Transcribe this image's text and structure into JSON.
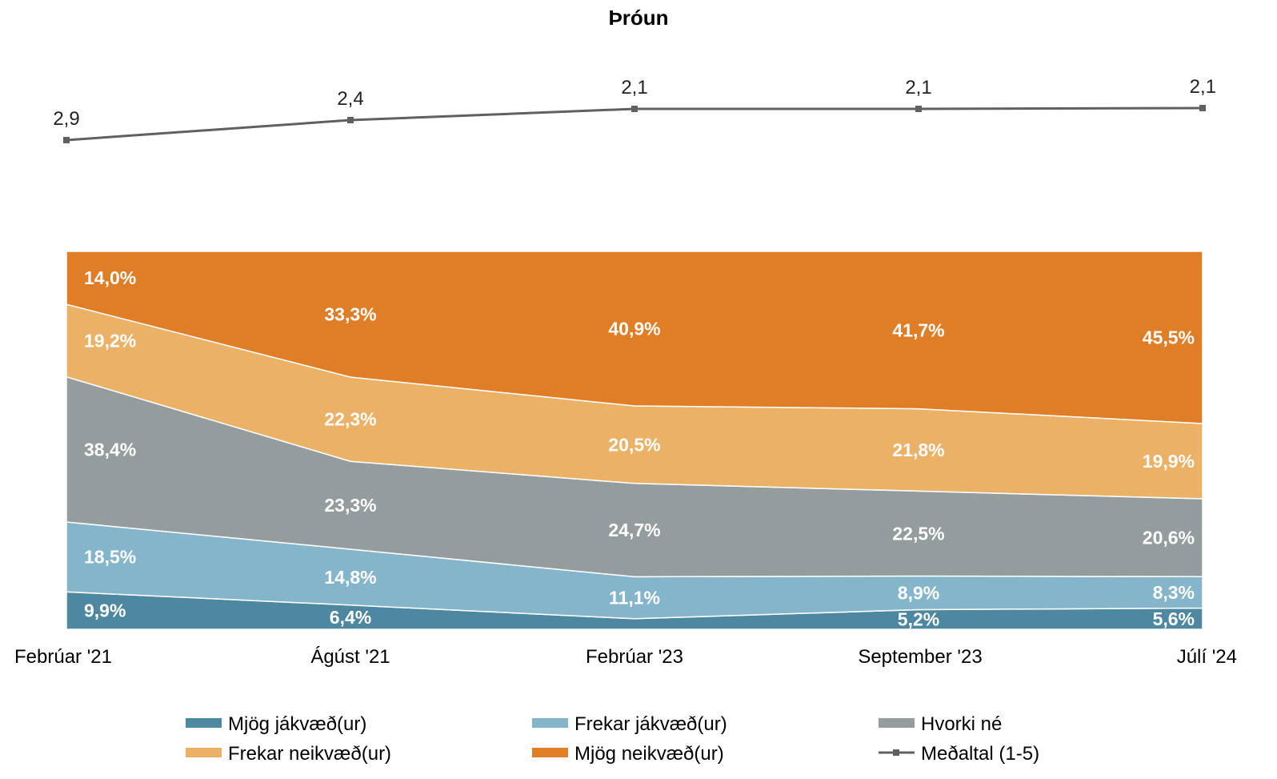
{
  "chart_data": {
    "type": "area",
    "title": "Þróun",
    "stacked": true,
    "percent_stacked": true,
    "categories": [
      "Febrúar '21",
      "Ágúst '21",
      "Febrúar '23",
      "September '23",
      "Júlí '24"
    ],
    "series": [
      {
        "name": "Mjög jákvæð(ur)",
        "color": "#4e87a0",
        "values": [
          9.9,
          6.4,
          2.8,
          5.2,
          5.6
        ],
        "labels": [
          "9,9%",
          "6,4%",
          "",
          "5,2%",
          "5,6%"
        ]
      },
      {
        "name": "Frekar jákvæð(ur)",
        "color": "#85b5cb",
        "values": [
          18.5,
          14.8,
          11.1,
          8.9,
          8.3
        ],
        "labels": [
          "18,5%",
          "14,8%",
          "11,1%",
          "8,9%",
          "8,3%"
        ]
      },
      {
        "name": "Hvorki né",
        "color": "#959c9d",
        "values": [
          38.4,
          23.3,
          24.7,
          22.5,
          20.6
        ],
        "labels": [
          "38,4%",
          "23,3%",
          "24,7%",
          "22,5%",
          "20,6%"
        ]
      },
      {
        "name": "Frekar neikvæð(ur)",
        "color": "#ebb267",
        "values": [
          19.2,
          22.3,
          20.5,
          21.8,
          19.9
        ],
        "labels": [
          "19,2%",
          "22,3%",
          "20,5%",
          "21,8%",
          "19,9%"
        ]
      },
      {
        "name": "Mjög neikvæð(ur)",
        "color": "#e07d27",
        "values": [
          14.0,
          33.3,
          40.9,
          41.7,
          45.5
        ],
        "labels": [
          "14,0%",
          "33,3%",
          "40,9%",
          "41,7%",
          "45,5%"
        ]
      }
    ],
    "average_line": {
      "name": "Meðaltal (1-5)",
      "color": "#606060",
      "values": [
        2.9,
        2.4,
        2.1,
        2.1,
        2.1
      ],
      "exact": [
        2.9,
        2.4,
        2.12,
        2.12,
        2.1
      ],
      "labels": [
        "2,9",
        "2,4",
        "2,1",
        "2,1",
        "2,1"
      ]
    },
    "legend_position": "bottom",
    "grid": false
  }
}
